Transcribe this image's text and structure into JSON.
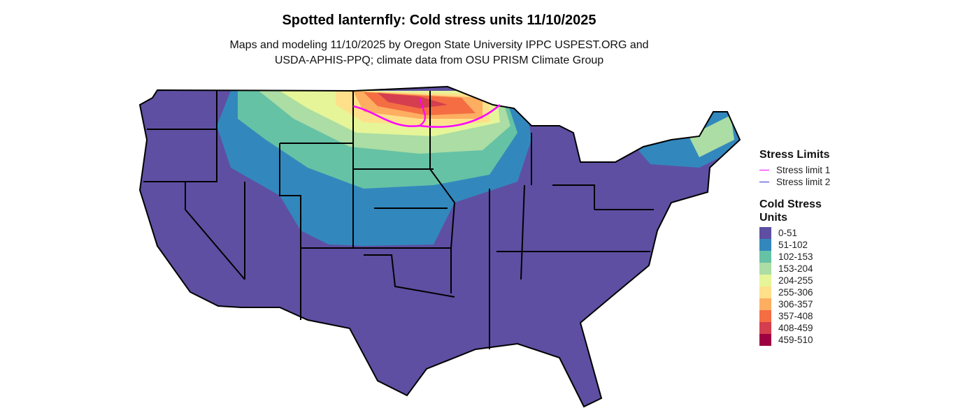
{
  "title": "Spotted lanternfly: Cold stress units 11/10/2025",
  "subtitle_line1": "Maps and modeling 11/10/2025 by Oregon State University IPPC USPEST.ORG and",
  "subtitle_line2": "USDA-APHIS-PPQ; climate data from OSU PRISM Climate Group",
  "legend": {
    "limits_title": "Stress Limits",
    "limits": [
      {
        "label": "Stress limit 1",
        "color": "#FF00FF"
      },
      {
        "label": "Stress limit 2",
        "color": "#3333CC"
      }
    ],
    "units_title_line1": "Cold Stress",
    "units_title_line2": "Units",
    "classes": [
      {
        "label": "0-51",
        "color": "#5E4FA2"
      },
      {
        "label": "51-102",
        "color": "#3288BD"
      },
      {
        "label": "102-153",
        "color": "#66C2A5"
      },
      {
        "label": "153-204",
        "color": "#ABDDA4"
      },
      {
        "label": "204-255",
        "color": "#E6F598"
      },
      {
        "label": "255-306",
        "color": "#FEE08B"
      },
      {
        "label": "306-357",
        "color": "#FDAE61"
      },
      {
        "label": "357-408",
        "color": "#F46D43"
      },
      {
        "label": "408-459",
        "color": "#D53E4F"
      },
      {
        "label": "459-510",
        "color": "#9E0142"
      }
    ]
  }
}
